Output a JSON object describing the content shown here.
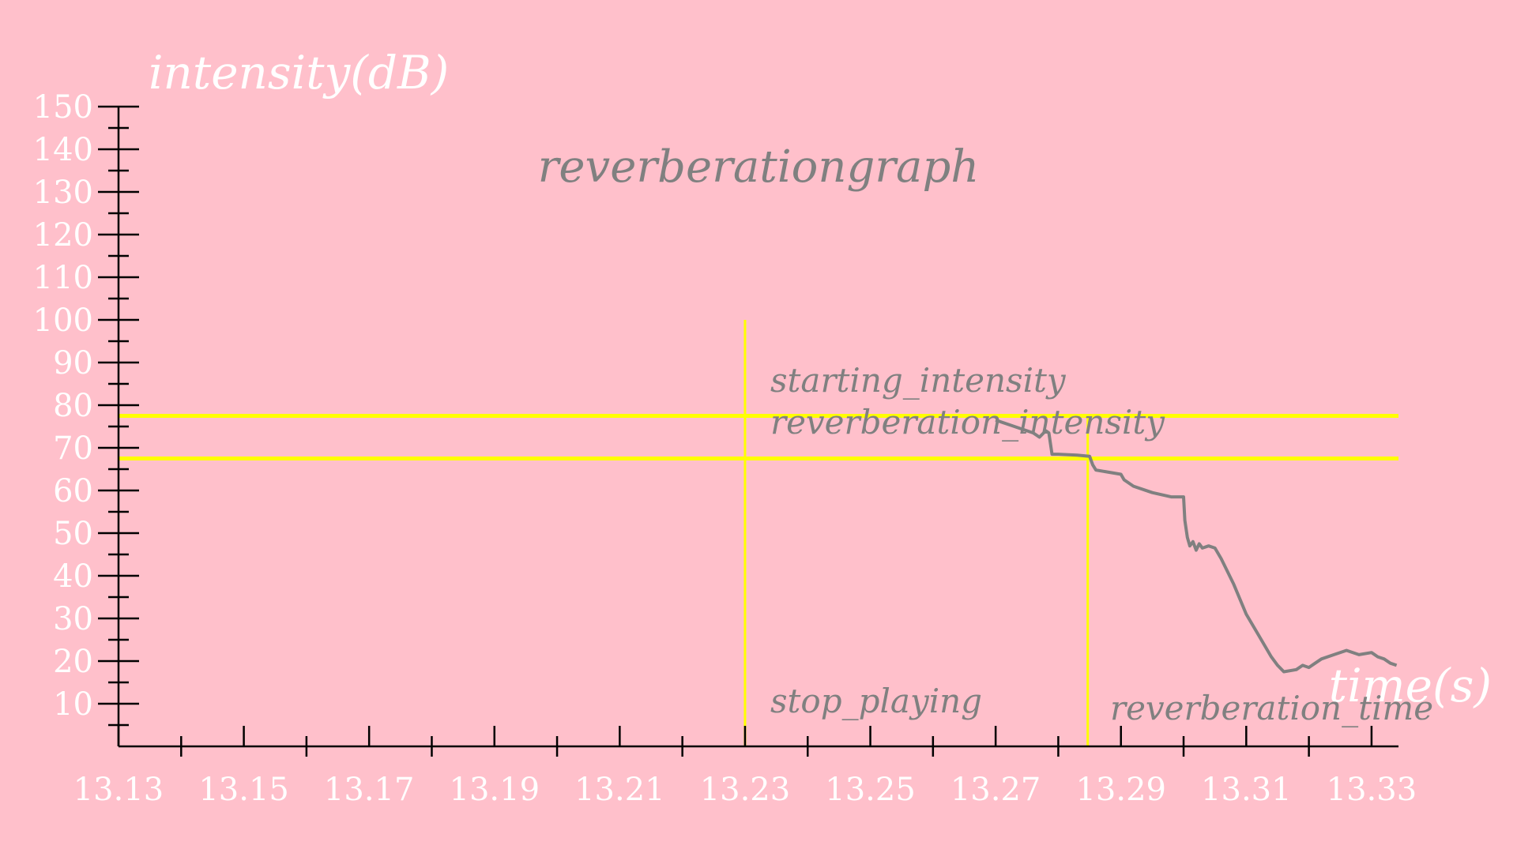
{
  "chart_data": {
    "type": "line",
    "title": "reverberationgraph",
    "xlabel": "time(s)",
    "ylabel": "intensity(dB)",
    "xlim": [
      13.13,
      13.3343
    ],
    "ylim": [
      0,
      150
    ],
    "x_ticks": [
      13.13,
      13.15,
      13.17,
      13.19,
      13.21,
      13.23,
      13.25,
      13.27,
      13.29,
      13.31,
      13.33
    ],
    "x_tick_labels": [
      "13.13",
      "13.15",
      "13.17",
      "13.19",
      "13.21",
      "13.23",
      "13.25",
      "13.27",
      "13.29",
      "13.31",
      "13.33"
    ],
    "x_minor_ticks": [
      13.14,
      13.16,
      13.18,
      13.2,
      13.22,
      13.24,
      13.26,
      13.28,
      13.3,
      13.32
    ],
    "y_ticks": [
      10,
      20,
      30,
      40,
      50,
      60,
      70,
      80,
      90,
      100,
      110,
      120,
      130,
      140,
      150
    ],
    "y_tick_labels": [
      "10",
      "20",
      "30",
      "40",
      "50",
      "60",
      "70",
      "80",
      "90",
      "100",
      "110",
      "120",
      "130",
      "140",
      "150"
    ],
    "y_minor_ticks": [
      5,
      15,
      25,
      35,
      45,
      55,
      65,
      75,
      85,
      95,
      105,
      115,
      125,
      135,
      145
    ],
    "grid": false,
    "colors": {
      "background": "#ffc0cb",
      "series": "#808080",
      "reference": "#ffff00",
      "axis": "#000000",
      "labels": "#ffffff",
      "annotations": "#808080"
    },
    "series": [
      {
        "color": "#808080",
        "x": [
          13.27,
          13.273,
          13.276,
          13.277,
          13.278,
          13.2785,
          13.279,
          13.28,
          13.283,
          13.285,
          13.2855,
          13.286,
          13.29,
          13.2905,
          13.292,
          13.295,
          13.298,
          13.3,
          13.3002,
          13.3006,
          13.301,
          13.3015,
          13.302,
          13.3025,
          13.303,
          13.304,
          13.305,
          13.306,
          13.308,
          13.31,
          13.312,
          13.314,
          13.315,
          13.316,
          13.318,
          13.319,
          13.32,
          13.321,
          13.322,
          13.324,
          13.326,
          13.328,
          13.33,
          13.331,
          13.332,
          13.333,
          13.334
        ],
        "y": [
          76.5,
          75.0,
          73.5,
          72.5,
          74.0,
          73.5,
          68.5,
          68.5,
          68.3,
          68.0,
          66.0,
          64.8,
          63.8,
          62.5,
          61.0,
          59.5,
          58.5,
          58.5,
          53.0,
          49.0,
          47.0,
          48.0,
          46.0,
          47.5,
          46.5,
          47.0,
          46.5,
          44.0,
          38.0,
          31.0,
          26.0,
          21.0,
          19.0,
          17.5,
          18.0,
          19.0,
          18.5,
          19.5,
          20.5,
          21.5,
          22.5,
          21.5,
          22.0,
          21.0,
          20.5,
          19.5,
          19.0
        ]
      }
    ],
    "reference_lines": [
      {
        "orientation": "horizontal",
        "value": 77.5
      },
      {
        "orientation": "horizontal",
        "value": 67.5
      },
      {
        "orientation": "vertical",
        "value": 13.23,
        "ymax": 100
      },
      {
        "orientation": "vertical",
        "value": 13.2847,
        "ymax": 77.5
      }
    ],
    "annotations": {
      "starting_intensity": "starting_intensity",
      "reverberation_intensity": "reverberation_intensity",
      "stop_playing": "stop_playing",
      "reverberation_time": "reverberation_time"
    }
  }
}
